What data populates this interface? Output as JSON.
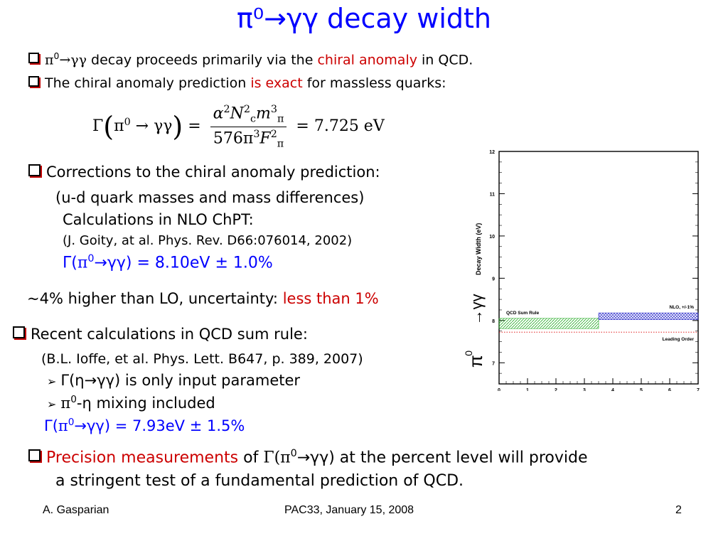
{
  "title": "π⁰→γγ decay width",
  "bullets": {
    "b1": {
      "pi_sym": "π",
      "pi_sup": "0",
      "gg": "→γγ",
      "text_a": " decay proceeds primarily via the ",
      "text_red": "chiral anomaly",
      "text_b": " in  QCD."
    },
    "b2": {
      "text_a": "The chiral anomaly prediction ",
      "text_red": "is exact",
      "text_b": " for massless quarks:"
    }
  },
  "formula": {
    "gamma": "Γ",
    "pi": "π",
    "pi_sup": "0",
    "arrow_gg": "→ γγ",
    "equals": "=",
    "num_alpha": "α",
    "num_alpha_sup": "2",
    "num_N": "N",
    "num_N_sup": "2",
    "num_N_sub": "c",
    "num_m": "m",
    "num_m_sup": "3",
    "num_m_sub": "π",
    "den_576": "576π",
    "den_576_sup": "3",
    "den_F": "F",
    "den_F_sup": "2",
    "den_F_sub": "π",
    "result": "= 7.725 eV"
  },
  "corrections": {
    "heading": "Corrections to the chiral anomaly prediction:",
    "line1": "(u-d quark masses and mass differences)",
    "line2": "Calculations in NLO ChPT:",
    "line3": "(J. Goity, at al. Phys. Rev. D66:076014, 2002)",
    "result_a": "Γ(",
    "result_pi": "π",
    "result_sup": "0",
    "result_b": "→γγ) = 8.10eV ± 1.0%",
    "summary_a": "~4% higher than LO, uncertainty: ",
    "summary_red": "less than 1%"
  },
  "qcd_sum_rule": {
    "heading": "Recent calculations in QCD sum rule:",
    "ref": "(B.L. Ioffe, et al. Phys. Lett. B647, p. 389, 2007)",
    "item1": "Γ(η→γγ) is only input parameter",
    "item2_pi": "π",
    "item2_sup": "0",
    "item2_rest": "-η mixing included",
    "result_a": "Γ(",
    "result_pi": "π",
    "result_sup": "0",
    "result_b": "→γγ) = 7.93eV ± 1.5%"
  },
  "precision": {
    "red": "Precision measurements",
    "text_a": " of ",
    "gamma": "Γ(",
    "pi": "π",
    "pi_sup": "0",
    "text_b": "→γγ) at the percent level will provide",
    "line2": "a stringent test of a fundamental prediction of QCD."
  },
  "footer": {
    "author": "A. Gasparian",
    "event": "PAC33, January 15, 2008",
    "page": "2"
  },
  "colors": {
    "title": "#0000ff",
    "highlight": "#cc0000",
    "qcd_band": "#22aa22",
    "nlo_band": "#3333cc",
    "lo_line": "#dd0000"
  },
  "chart_data": {
    "type": "bar",
    "ylabel": "Decay Width (eV)",
    "ylabel_prefix_pi": "π",
    "ylabel_prefix_sup": "0",
    "ylabel_prefix_arrow": "→γγ",
    "xlim": [
      0,
      7
    ],
    "ylim": [
      6.5,
      12
    ],
    "x_ticks": [
      0,
      1,
      2,
      3,
      4,
      5,
      6,
      7
    ],
    "y_ticks": [
      7,
      8,
      9,
      10,
      11,
      12
    ],
    "bands": [
      {
        "name": "QCD Sum Rule",
        "x0": 0,
        "x1": 3.5,
        "center": 7.93,
        "half_width": 0.12
      },
      {
        "name": "NLO, +/-1%",
        "x0": 3.5,
        "x1": 7,
        "center": 8.1,
        "half_width": 0.08
      }
    ],
    "lines": [
      {
        "name": "Leading Order",
        "x0": 0,
        "x1": 7,
        "y": 7.725
      }
    ]
  }
}
